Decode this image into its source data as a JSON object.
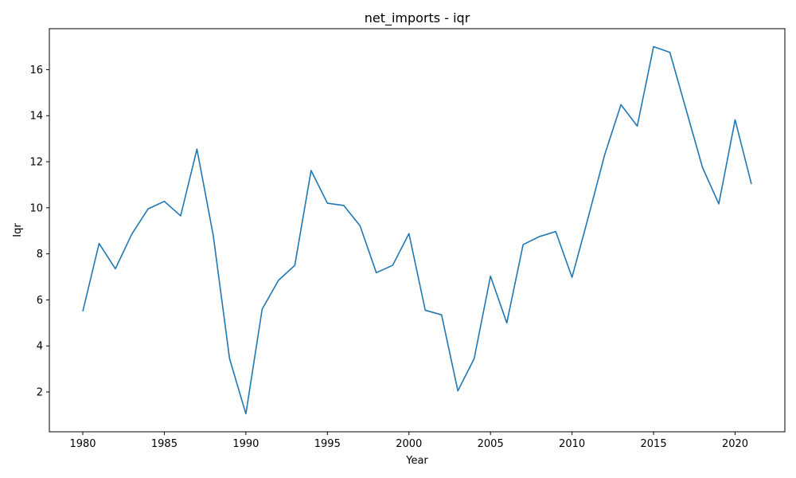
{
  "chart_data": {
    "type": "line",
    "title": "net_imports - iqr",
    "xlabel": "Year",
    "ylabel": "Iqr",
    "xlim": [
      1977.95,
      2023.05
    ],
    "ylim": [
      0.27,
      17.78
    ],
    "xticks": [
      1980,
      1985,
      1990,
      1995,
      2000,
      2005,
      2010,
      2015,
      2020
    ],
    "yticks": [
      2,
      4,
      6,
      8,
      10,
      12,
      14,
      16
    ],
    "grid": false,
    "series": [
      {
        "color": "#1f77b4",
        "x": [
          1980,
          1981,
          1982,
          1983,
          1984,
          1985,
          1986,
          1987,
          1988,
          1989,
          1990,
          1991,
          1992,
          1993,
          1994,
          1995,
          1996,
          1997,
          1998,
          1999,
          2000,
          2001,
          2002,
          2003,
          2004,
          2005,
          2006,
          2007,
          2008,
          2009,
          2010,
          2011,
          2012,
          2013,
          2014,
          2015,
          2016,
          2017,
          2018,
          2019,
          2020,
          2021
        ],
        "y": [
          5.5,
          8.45,
          7.35,
          8.85,
          9.95,
          10.28,
          9.65,
          12.55,
          8.8,
          3.45,
          1.05,
          5.6,
          6.85,
          7.5,
          11.62,
          10.2,
          10.1,
          9.22,
          7.18,
          7.5,
          8.88,
          5.55,
          5.35,
          2.05,
          3.45,
          7.03,
          5.0,
          8.4,
          8.75,
          8.97,
          6.98,
          9.6,
          12.3,
          14.48,
          13.55,
          17.0,
          16.75,
          14.25,
          11.75,
          10.17,
          13.82,
          11.03
        ]
      }
    ]
  }
}
